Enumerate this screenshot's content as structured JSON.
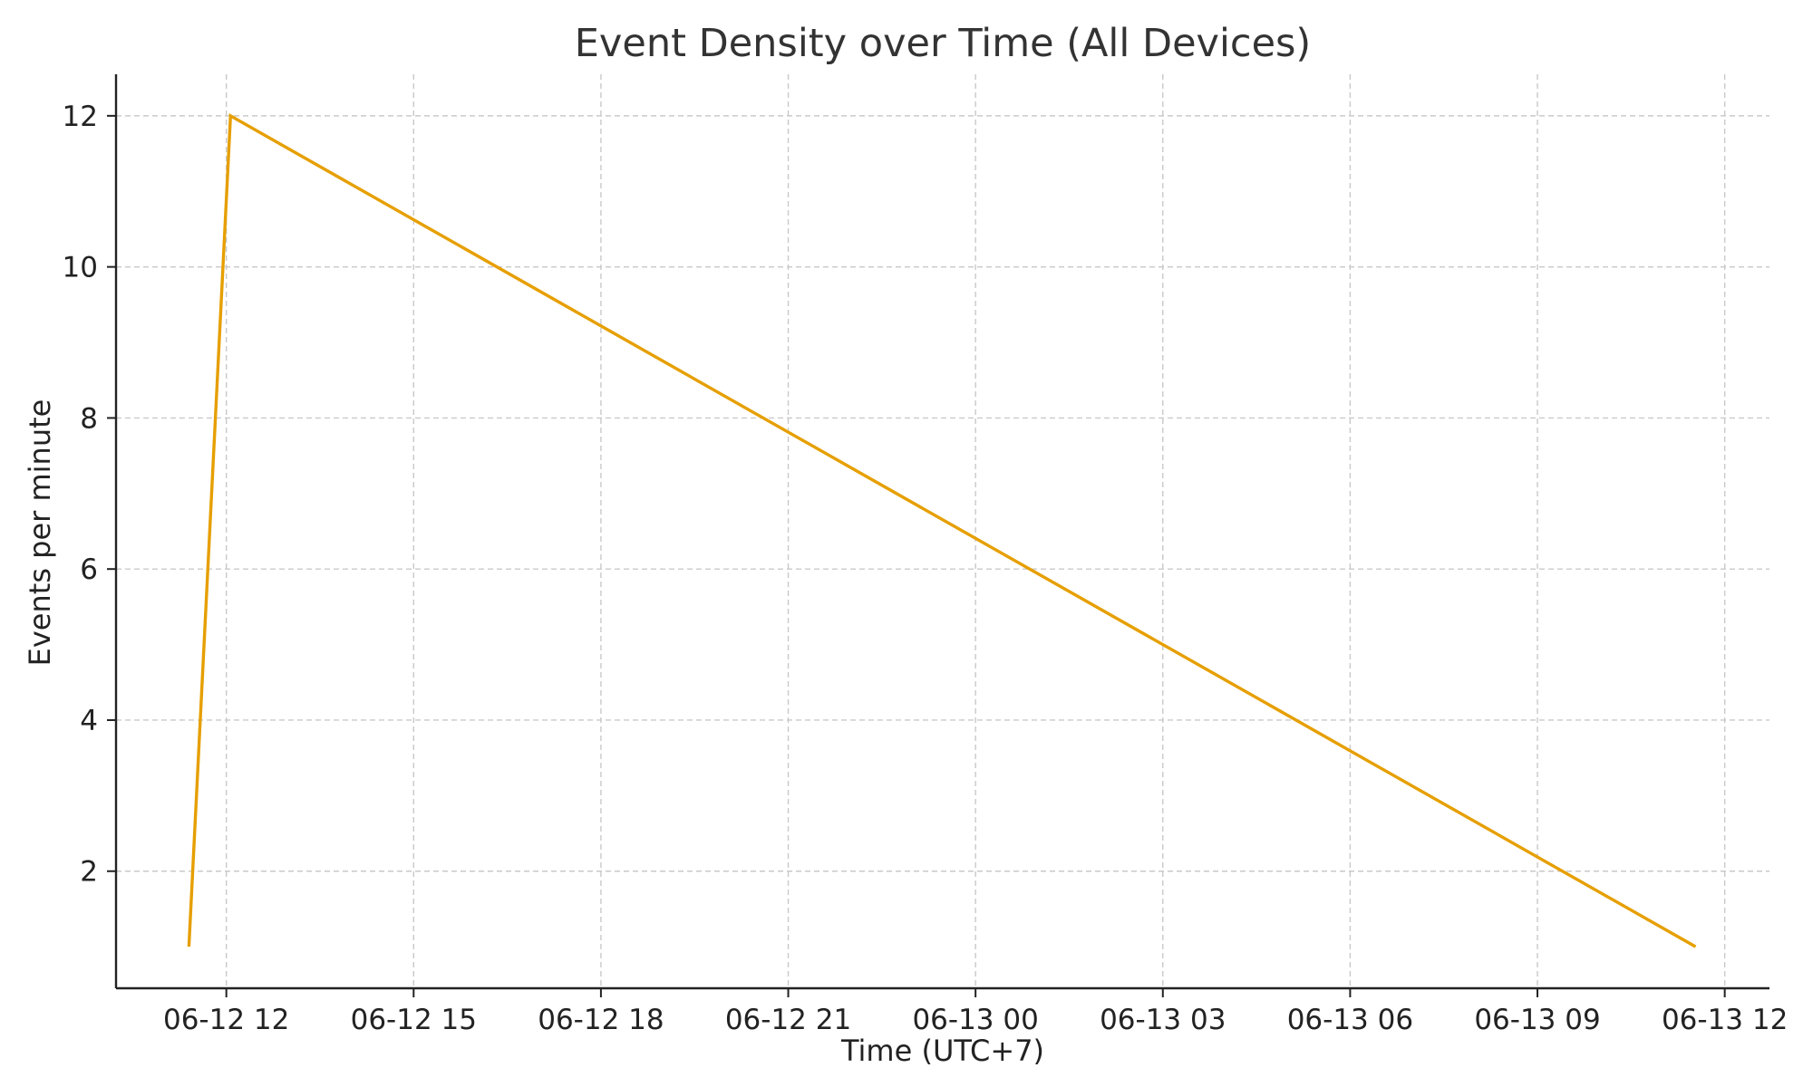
{
  "chart_data": {
    "type": "line",
    "title": "Event Density over Time (All Devices)",
    "xlabel": "Time (UTC+7)",
    "ylabel": "Events per minute",
    "x_ticks": [
      "06-12 12",
      "06-12 15",
      "06-12 18",
      "06-12 21",
      "06-13 00",
      "06-13 03",
      "06-13 06",
      "06-13 09",
      "06-13 12"
    ],
    "y_ticks": [
      2,
      4,
      6,
      8,
      10,
      12
    ],
    "xlim": [
      "2024-06-12 10:14",
      "2024-06-13 12:43"
    ],
    "ylim": [
      0.45,
      12.55
    ],
    "grid": true,
    "series": [
      {
        "color": "#E69F00",
        "points": [
          {
            "x": "2024-06-12 11:24",
            "y": 1
          },
          {
            "x": "2024-06-12 12:04",
            "y": 12
          },
          {
            "x": "2024-06-13 11:32",
            "y": 1
          }
        ]
      }
    ]
  }
}
